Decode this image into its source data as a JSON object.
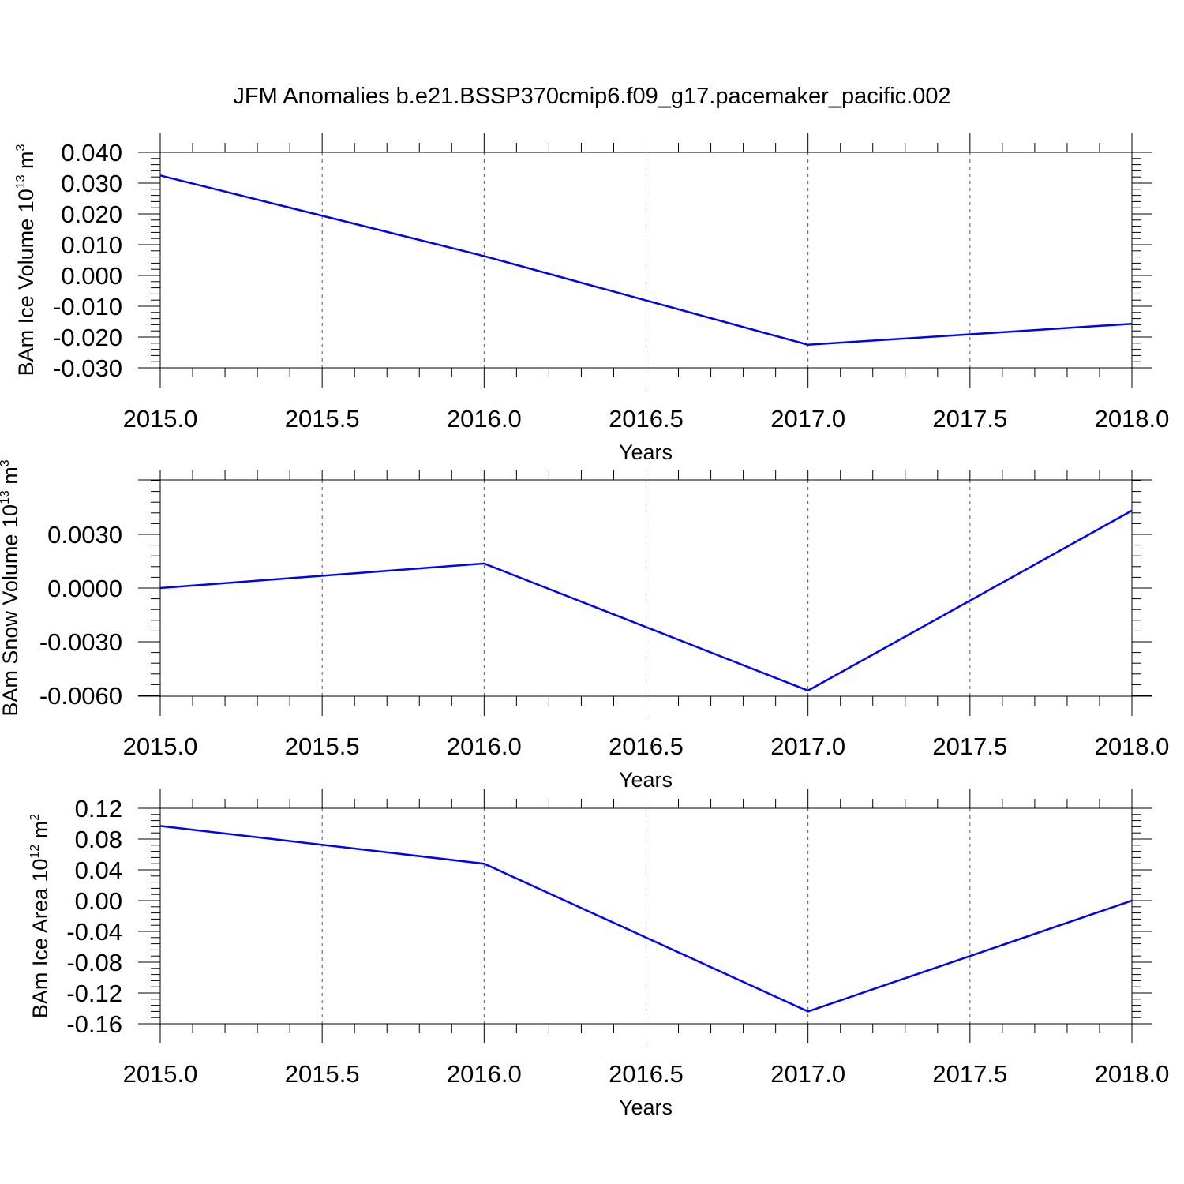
{
  "title": "JFM Anomalies b.e21.BSSP370cmip6.f09_g17.pacemaker_pacific.002",
  "line_color": "#0000ff",
  "chart_data": [
    {
      "type": "line",
      "xlabel": "Years",
      "ylabel": {
        "base": "BAm Ice Volume 10",
        "exp1": "13",
        "unit": " m",
        "exp2": "3"
      },
      "x": [
        2015.0,
        2016.0,
        2017.0,
        2018.0
      ],
      "series": [
        {
          "values": [
            0.0325,
            0.0063,
            -0.0225,
            -0.0157
          ]
        }
      ],
      "xlim": [
        2015.0,
        2018.0
      ],
      "ylim": [
        -0.03,
        0.04
      ],
      "xticks": [
        "2015.0",
        "2015.5",
        "2016.0",
        "2016.5",
        "2017.0",
        "2017.5",
        "2018.0"
      ],
      "yticks": [
        "0.040",
        "0.030",
        "0.020",
        "0.010",
        "0.000",
        "-0.010",
        "-0.020",
        "-0.030"
      ],
      "grid": "vertical dashed"
    },
    {
      "type": "line",
      "xlabel": "Years",
      "ylabel": {
        "base": "BAm Snow Volume 10",
        "exp1": "13",
        "unit": " m",
        "exp2": "3"
      },
      "x": [
        2015.0,
        2016.0,
        2017.0,
        2018.0
      ],
      "series": [
        {
          "values": [
            0.0,
            0.00137,
            -0.00573,
            0.00433
          ]
        }
      ],
      "xlim": [
        2015.0,
        2018.0
      ],
      "ylim": [
        -0.006,
        0.006
      ],
      "xticks": [
        "2015.0",
        "2015.5",
        "2016.0",
        "2016.5",
        "2017.0",
        "2017.5",
        "2018.0"
      ],
      "yticks": [
        "0.0030",
        "0.0000",
        "-0.0030",
        "-0.0060"
      ],
      "grid": "vertical dashed"
    },
    {
      "type": "line",
      "xlabel": "Years",
      "ylabel": {
        "base": "BAm Ice Area 10",
        "exp1": "12",
        "unit": " m",
        "exp2": "2"
      },
      "x": [
        2015.0,
        2016.0,
        2017.0,
        2018.0
      ],
      "series": [
        {
          "values": [
            0.097,
            0.048,
            -0.144,
            0.0
          ]
        }
      ],
      "xlim": [
        2015.0,
        2018.0
      ],
      "ylim": [
        -0.16,
        0.12
      ],
      "xticks": [
        "2015.0",
        "2015.5",
        "2016.0",
        "2016.5",
        "2017.0",
        "2017.5",
        "2018.0"
      ],
      "yticks": [
        "0.12",
        "0.08",
        "0.04",
        "0.00",
        "-0.04",
        "-0.08",
        "-0.12",
        "-0.16"
      ],
      "grid": "vertical dashed"
    }
  ]
}
